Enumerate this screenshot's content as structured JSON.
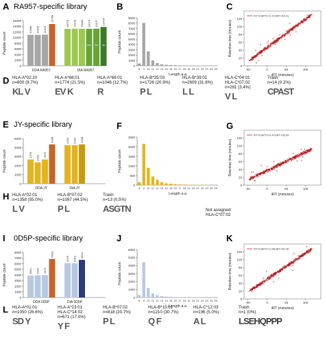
{
  "colors": {
    "gray": "#a6a6a6",
    "dark_gray": "#7a7a7a",
    "orange": "#c6642a",
    "green_light": "#9bc94f",
    "green_mid": "#67a336",
    "green_dark": "#3d7a2c",
    "gold": "#e3b420",
    "gold_dark": "#c99a10",
    "blue_light": "#b9c8e2",
    "blue_dark": "#2b3a78",
    "red": "#cc1f1f"
  },
  "panels": {
    "A": "A",
    "B": "B",
    "C": "C",
    "D": "D",
    "E": "E",
    "F": "F",
    "G": "G",
    "H": "H",
    "I": "I",
    "J": "J",
    "K": "K",
    "L": "L"
  },
  "titles": {
    "ra957": "RA957-specific library",
    "jy": "JY-specific library",
    "od5p": "0D5P-specific library"
  },
  "alleles": {
    "D": [
      {
        "name": "HLA-A*02:20",
        "n": "n=800 (9.7%)"
      },
      {
        "name": "HLA-A*68:01",
        "n": "n=1774 (21.5%)"
      },
      {
        "name": "HLA-A*68:01",
        "n": "n=1046 (12.7%)"
      },
      {
        "name": "HLA-B*35:03",
        "n": "n=1726 (20.9%)"
      },
      {
        "name": "HLA-B*39:01",
        "n": "n=2609 (31.6%)"
      },
      {
        "name": "HLA-C*04:01",
        "name2": "HLA-C*07:02",
        "n": "n=281 (3.4%)"
      },
      {
        "name": "Trash",
        "n": "n=14 (0.2%)"
      }
    ],
    "H": [
      {
        "name": "HLA-A*02:01",
        "n": "n=1358 (55.0%)"
      },
      {
        "name": "HLA-B*07:02",
        "n": "n=1097 (44.5%)"
      },
      {
        "name": "Trash",
        "n": "n=13 (0.5%)"
      }
    ],
    "H_note": "Not assigned:",
    "H_note2": "HLA-C*07:02",
    "L": [
      {
        "name": "HLA-A*01:01",
        "n": "n=1050 (26.6%)"
      },
      {
        "name": "HLA-A*23:01",
        "name2": "HLA-C*14:02",
        "n": "n=671 (17.0%)"
      },
      {
        "name": "HLA-B*07:02",
        "n": "n=818 (20.7%)"
      },
      {
        "name": "HLA-B*15:01",
        "n": "n=1210 (30.7%)"
      },
      {
        "name": "HLA-C*12:03",
        "n": "n=196 (5.0%)"
      },
      {
        "name": "Trash",
        "n": "n=1 (0%)"
      }
    ]
  },
  "chart_data": [
    {
      "id": "A",
      "type": "bar",
      "ylabel": "Peptide count",
      "ylim": [
        0,
        16000
      ],
      "yticks": [
        0,
        2000,
        4000,
        6000,
        8000,
        10000,
        12000,
        14000,
        16000
      ],
      "groups": [
        "DDA RA957",
        "DIA RA957"
      ],
      "bars": [
        {
          "group": 0,
          "value": 10988,
          "label": "10988",
          "color": "gray"
        },
        {
          "group": 0,
          "value": 10928,
          "label": "10928",
          "color": "gray"
        },
        {
          "group": 0,
          "value": 11015,
          "label": "11015",
          "color": "gray"
        },
        {
          "group": 0,
          "value": 14788,
          "label": "14788",
          "color": "orange"
        },
        {
          "group": 1,
          "value": 13078,
          "label": "13078",
          "color": "green_light"
        },
        {
          "group": 1,
          "value": 13128,
          "label": "13128",
          "color": "green_light"
        },
        {
          "group": 1,
          "value": 13086,
          "label": "13086",
          "color": "green_light"
        },
        {
          "group": 1,
          "value": 13074,
          "label": "13074",
          "color": "green_mid"
        },
        {
          "group": 1,
          "value": 13127,
          "label": "13127",
          "color": "green_mid"
        },
        {
          "group": 1,
          "value": 13734,
          "label": "13734",
          "color": "green_dark"
        }
      ],
      "stack_labels": [
        "2nr",
        "3n",
        "4n"
      ]
    },
    {
      "id": "B",
      "type": "bar",
      "xlabel": "Length a.a",
      "ylabel": "Peptide count",
      "ylim": [
        0,
        9000
      ],
      "yticks": [
        0,
        1000,
        2000,
        3000,
        4000,
        5000,
        6000,
        7000,
        8000,
        9000
      ],
      "categories": [
        "8",
        "9",
        "10",
        "11",
        "12",
        "13",
        "14",
        "15",
        "16",
        "17",
        "18",
        "19",
        "20",
        "21",
        "22",
        "23",
        "24",
        "25"
      ],
      "values": [
        420,
        8050,
        2700,
        1000,
        520,
        300,
        200,
        150,
        110,
        80,
        60,
        50,
        40,
        30,
        20,
        15,
        10,
        5
      ],
      "color": "gray"
    },
    {
      "id": "C",
      "type": "scatter",
      "xlabel": "iRT (minutes)",
      "ylabel": "Retention time (minutes)",
      "xlim": [
        -60,
        140
      ],
      "ylim": [
        0,
        140
      ],
      "xticks": [
        -50,
        0,
        50,
        100
      ],
      "yticks": [
        0,
        20,
        40,
        60,
        80,
        100,
        120
      ],
      "legend": "RT=0.8RT2+0.72xiRT+46.91",
      "fit": {
        "slope": 0.72,
        "intercept": 46.91
      },
      "color": "red"
    },
    {
      "id": "E",
      "type": "bar",
      "ylabel": "Peptide count",
      "ylim": [
        0,
        5000
      ],
      "yticks": [
        0,
        1000,
        2000,
        3000,
        4000,
        5000
      ],
      "groups": [
        "DDA JY",
        "DIA JY"
      ],
      "bars": [
        {
          "group": 0,
          "value": 2678,
          "label": "2678",
          "color": "gold"
        },
        {
          "group": 0,
          "value": 2358,
          "label": "2358",
          "color": "gold"
        },
        {
          "group": 0,
          "value": 2676,
          "label": "2676",
          "color": "gold"
        },
        {
          "group": 0,
          "value": 4348,
          "label": "4348",
          "color": "orange"
        },
        {
          "group": 1,
          "value": 4264,
          "label": "4264",
          "color": "gold"
        },
        {
          "group": 1,
          "value": 4263,
          "label": "4263",
          "color": "gold"
        },
        {
          "group": 1,
          "value": 4348,
          "label": "4348",
          "color": "gold_dark"
        }
      ]
    },
    {
      "id": "F",
      "type": "bar",
      "xlabel": "Length a.a",
      "ylabel": "Peptide count",
      "ylim": [
        0,
        2500
      ],
      "yticks": [
        0,
        500,
        1000,
        1500,
        2000,
        2500
      ],
      "categories": [
        "8",
        "9",
        "10",
        "11",
        "12",
        "13",
        "14",
        "15",
        "16",
        "17",
        "18",
        "19",
        "20",
        "21",
        "22",
        "23",
        "24",
        "25"
      ],
      "values": [
        150,
        2150,
        900,
        450,
        280,
        150,
        90,
        70,
        50,
        35,
        25,
        20,
        15,
        10,
        8,
        6,
        4,
        2
      ],
      "color": "gold"
    },
    {
      "id": "G",
      "type": "scatter",
      "xlabel": "iRT (minutes)",
      "ylabel": "Retention time (minutes)",
      "xlim": [
        -60,
        140
      ],
      "ylim": [
        0,
        140
      ],
      "xticks": [
        -50,
        0,
        50,
        100
      ],
      "yticks": [
        0,
        20,
        40,
        60,
        80,
        100,
        120
      ],
      "legend": "RT=0.8RT2+0.47xiRT+36.99",
      "fit": {
        "slope": 0.47,
        "intercept": 36.99
      },
      "color": "red"
    },
    {
      "id": "I",
      "type": "bar",
      "ylabel": "Peptide count",
      "ylim": [
        0,
        8000
      ],
      "yticks": [
        0,
        1000,
        2000,
        3000,
        4000,
        5000,
        6000,
        7000,
        8000
      ],
      "groups": [
        "DDA 0D5P",
        "DIA 0D5P"
      ],
      "bars": [
        {
          "group": 0,
          "value": 3891,
          "label": "3891",
          "color": "blue_light"
        },
        {
          "group": 0,
          "value": 3916,
          "label": "3916",
          "color": "blue_light"
        },
        {
          "group": 0,
          "value": 3975,
          "label": "3975",
          "color": "blue_light"
        },
        {
          "group": 0,
          "value": 6818,
          "label": "6818",
          "color": "orange"
        },
        {
          "group": 1,
          "value": 6076,
          "label": "6076",
          "color": "blue_light"
        },
        {
          "group": 1,
          "value": 6059,
          "label": "6059",
          "color": "blue_light"
        },
        {
          "group": 1,
          "value": 6654,
          "label": "6654",
          "color": "blue_dark"
        }
      ]
    },
    {
      "id": "J",
      "type": "bar",
      "xlabel": "Length a.a",
      "ylabel": "Peptide count",
      "ylim": [
        0,
        6000
      ],
      "yticks": [
        0,
        1000,
        2000,
        3000,
        4000,
        5000,
        6000
      ],
      "categories": [
        "8",
        "9",
        "10",
        "11",
        "12",
        "13",
        "14",
        "15",
        "16",
        "17",
        "18",
        "19",
        "20",
        "21",
        "22",
        "23",
        "24",
        "25"
      ],
      "values": [
        300,
        4400,
        1200,
        500,
        300,
        180,
        120,
        90,
        60,
        40,
        30,
        20,
        15,
        10,
        8,
        6,
        4,
        2
      ],
      "color": "blue_light"
    },
    {
      "id": "K",
      "type": "scatter",
      "xlabel": "iRT (minutes)",
      "ylabel": "Retention time (minutes)",
      "xlim": [
        -60,
        140
      ],
      "ylim": [
        0,
        140
      ],
      "xticks": [
        -50,
        0,
        50,
        100
      ],
      "yticks": [
        0,
        20,
        40,
        60,
        80,
        100,
        120
      ],
      "legend": "RT=0.8RT2+0.66xiRT+50.36",
      "fit": {
        "slope": 0.66,
        "intercept": 50.36
      },
      "color": "red"
    }
  ]
}
